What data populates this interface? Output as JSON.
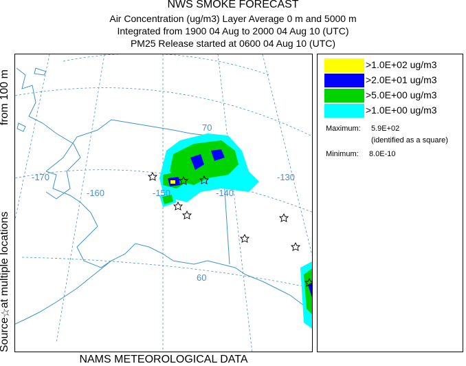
{
  "title": {
    "main": "NWS SMOKE FORECAST",
    "line1": "Air Concentration (ug/m3) Layer Average     0 m and  5000 m",
    "line2": "Integrated from 1900 04 Aug to 2000 04 Aug 10 (UTC)",
    "line3": "PM25 Release started at 0600 04 Aug 10 (UTC)"
  },
  "side_label": {
    "part1": "Source",
    "star": "☆",
    "part2": " at multiple locations",
    "part3": "from   100 m"
  },
  "footer": "NAMS METEOROLOGICAL DATA",
  "map": {
    "lon_labels": [
      "-170",
      "-160",
      "-150",
      "-140",
      "-130"
    ],
    "lat_labels": [
      "70",
      "60"
    ]
  },
  "legend": {
    "entries": [
      {
        "label": ">1.0E+02 ug/m3",
        "color": "#ffff00"
      },
      {
        "label": ">2.0E+01 ug/m3",
        "color": "#0000ff"
      },
      {
        "label": ">5.0E+00 ug/m3",
        "color": "#00d400"
      },
      {
        "label": ">1.0E+00 ug/m3",
        "color": "#00ffff"
      }
    ],
    "maximum_label": "Maximum:",
    "maximum_value": "5.9E+02",
    "maximum_note": "(identified as a square)",
    "minimum_label": "Minimum:",
    "minimum_value": "8.0E-10"
  },
  "colors": {
    "coast": "#3a93cc",
    "graticule": "#4a8fcf"
  }
}
